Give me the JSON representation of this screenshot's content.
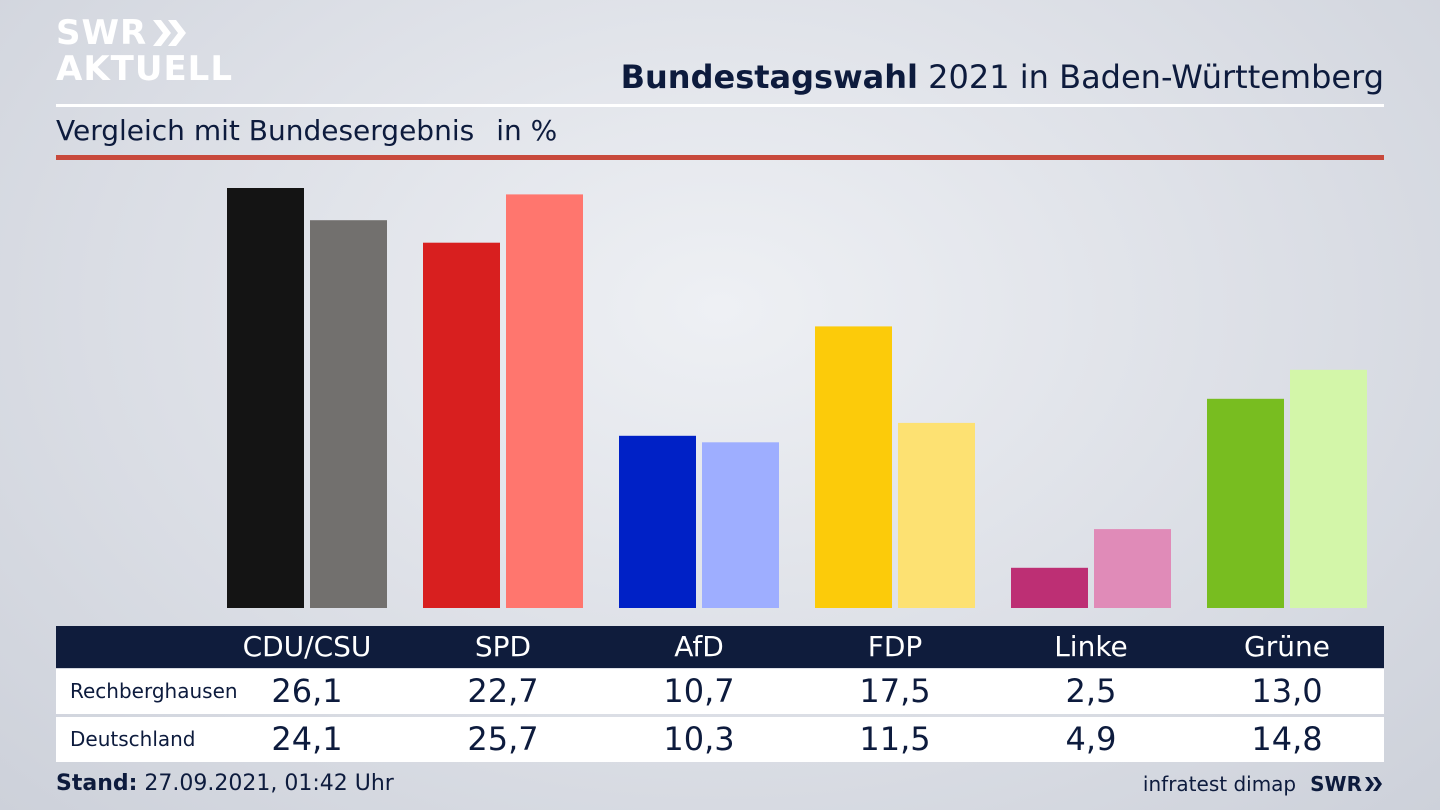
{
  "logo": {
    "line1": "SWR",
    "line2": "AKTUELL"
  },
  "header": {
    "title_bold": "Bundestagswahl",
    "title_rest": " 2021 in Baden-Württemberg",
    "subtitle": "Vergleich mit Bundesergebnis",
    "unit": "in %"
  },
  "colors": {
    "navy": "#0f1c3c",
    "accent_red": "#c8493c"
  },
  "chart_data": {
    "type": "bar",
    "title": "Bundestagswahl 2021 in Baden-Württemberg",
    "subtitle": "Vergleich mit Bundesergebnis in %",
    "categories": [
      "CDU/CSU",
      "SPD",
      "AfD",
      "FDP",
      "Linke",
      "Grüne"
    ],
    "series": [
      {
        "name": "Rechberghausen",
        "values": [
          26.1,
          22.7,
          10.7,
          17.5,
          2.5,
          13.0
        ],
        "labels": [
          "26,1",
          "22,7",
          "10,7",
          "17,5",
          "2,5",
          "13,0"
        ],
        "colors": [
          "#141414",
          "#d81f1f",
          "#0021c6",
          "#fccb0a",
          "#bd2f74",
          "#78bd20"
        ]
      },
      {
        "name": "Deutschland",
        "values": [
          24.1,
          25.7,
          10.3,
          11.5,
          4.9,
          14.8
        ],
        "labels": [
          "24,1",
          "25,7",
          "10,3",
          "11,5",
          "4,9",
          "14,8"
        ],
        "colors": [
          "#72706e",
          "#ff766e",
          "#9eaeff",
          "#fde172",
          "#e08bb8",
          "#d3f6a9"
        ]
      }
    ],
    "ylim": [
      0,
      26.1
    ],
    "grid": false,
    "legend": "table-below"
  },
  "footer": {
    "stand_label": "Stand:",
    "stand_value": " 27.09.2021, 01:42 Uhr",
    "source": "infratest dimap",
    "brand": "SWR"
  }
}
